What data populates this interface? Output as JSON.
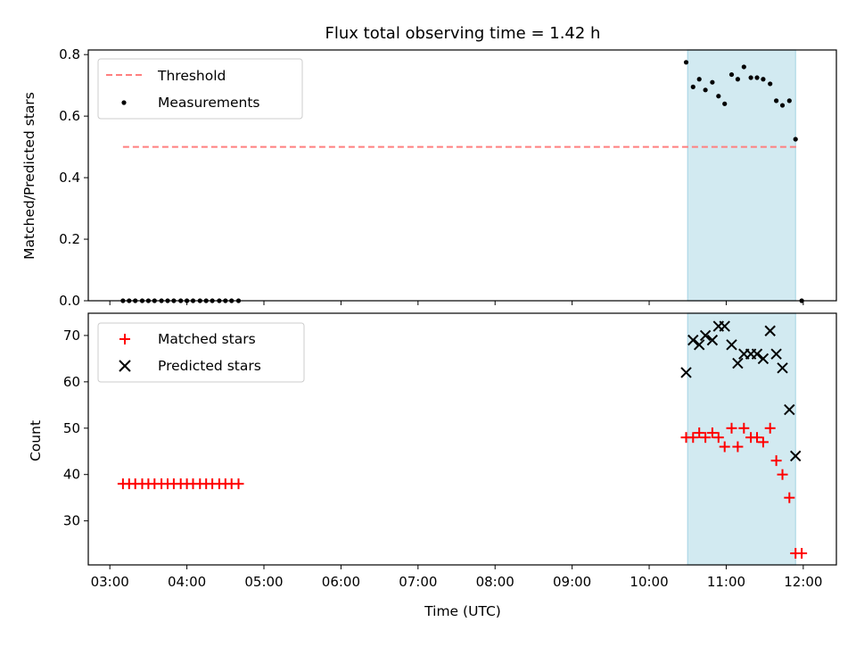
{
  "chart_data": [
    {
      "type": "scatter",
      "title": "Flux total observing time = 1.42 h",
      "xlabel": "",
      "ylabel": "Matched/Predicted stars",
      "x_unit": "hours (UTC)",
      "xlim": [
        2.72,
        12.43
      ],
      "ylim": [
        0,
        0.815
      ],
      "yticks": [
        "0.0",
        "0.2",
        "0.4",
        "0.6",
        "0.8"
      ],
      "yticks_values": [
        0,
        0.2,
        0.4,
        0.6,
        0.8
      ],
      "shaded_span": [
        10.5,
        11.9
      ],
      "shade_color": "#add8e6",
      "legend_position": "upper left",
      "threshold": {
        "name": "Threshold",
        "x": [
          3.17,
          11.93
        ],
        "y": 0.5,
        "color": "#ff7f7f",
        "style": "dashed"
      },
      "series": [
        {
          "name": "Measurements",
          "color": "#000000",
          "marker": "dot",
          "x": [
            3.17,
            3.25,
            3.33,
            3.42,
            3.5,
            3.58,
            3.67,
            3.75,
            3.83,
            3.92,
            4.0,
            4.08,
            4.17,
            4.25,
            4.33,
            4.42,
            4.5,
            4.58,
            4.67,
            10.48,
            10.57,
            10.65,
            10.73,
            10.82,
            10.9,
            10.98,
            11.07,
            11.15,
            11.23,
            11.32,
            11.4,
            11.48,
            11.57,
            11.65,
            11.73,
            11.82,
            11.9,
            11.98
          ],
          "y": [
            0,
            0,
            0,
            0,
            0,
            0,
            0,
            0,
            0,
            0,
            0,
            0,
            0,
            0,
            0,
            0,
            0,
            0,
            0,
            0.775,
            0.695,
            0.72,
            0.685,
            0.71,
            0.665,
            0.64,
            0.735,
            0.72,
            0.76,
            0.725,
            0.725,
            0.72,
            0.705,
            0.65,
            0.635,
            0.65,
            0.525,
            0.0
          ]
        }
      ]
    },
    {
      "type": "scatter",
      "title": "",
      "xlabel": "Time (UTC)",
      "ylabel": "Count",
      "x_unit": "hours (UTC)",
      "xlim": [
        2.72,
        12.43
      ],
      "ylim": [
        20.5,
        74.8
      ],
      "yticks": [
        "30",
        "40",
        "50",
        "60",
        "70"
      ],
      "yticks_values": [
        30,
        40,
        50,
        60,
        70
      ],
      "xticks": [
        "03:00",
        "04:00",
        "05:00",
        "06:00",
        "07:00",
        "08:00",
        "09:00",
        "10:00",
        "11:00",
        "12:00"
      ],
      "xticks_values": [
        3,
        4,
        5,
        6,
        7,
        8,
        9,
        10,
        11,
        12
      ],
      "shaded_span": [
        10.5,
        11.9
      ],
      "shade_color": "#add8e6",
      "legend_position": "upper left",
      "series": [
        {
          "name": "Matched stars",
          "color": "#ff0000",
          "marker": "plus",
          "x": [
            3.17,
            3.25,
            3.33,
            3.42,
            3.5,
            3.58,
            3.67,
            3.75,
            3.83,
            3.92,
            4.0,
            4.08,
            4.17,
            4.25,
            4.33,
            4.42,
            4.5,
            4.58,
            4.67,
            10.48,
            10.57,
            10.65,
            10.73,
            10.82,
            10.9,
            10.98,
            11.07,
            11.15,
            11.23,
            11.32,
            11.4,
            11.48,
            11.57,
            11.65,
            11.73,
            11.82,
            11.9,
            11.98
          ],
          "y": [
            38,
            38,
            38,
            38,
            38,
            38,
            38,
            38,
            38,
            38,
            38,
            38,
            38,
            38,
            38,
            38,
            38,
            38,
            38,
            48,
            48,
            49,
            48,
            49,
            48,
            46,
            50,
            46,
            50,
            48,
            48,
            47,
            50,
            43,
            40,
            35,
            23,
            23
          ]
        },
        {
          "name": "Predicted stars",
          "color": "#000000",
          "marker": "x",
          "x": [
            10.48,
            10.57,
            10.65,
            10.73,
            10.82,
            10.9,
            10.98,
            11.07,
            11.15,
            11.23,
            11.32,
            11.4,
            11.48,
            11.57,
            11.65,
            11.73,
            11.82,
            11.9
          ],
          "y": [
            62,
            69,
            68,
            70,
            69,
            72,
            72,
            68,
            64,
            66,
            66,
            66,
            65,
            71,
            66,
            63,
            54,
            44
          ]
        }
      ]
    }
  ]
}
